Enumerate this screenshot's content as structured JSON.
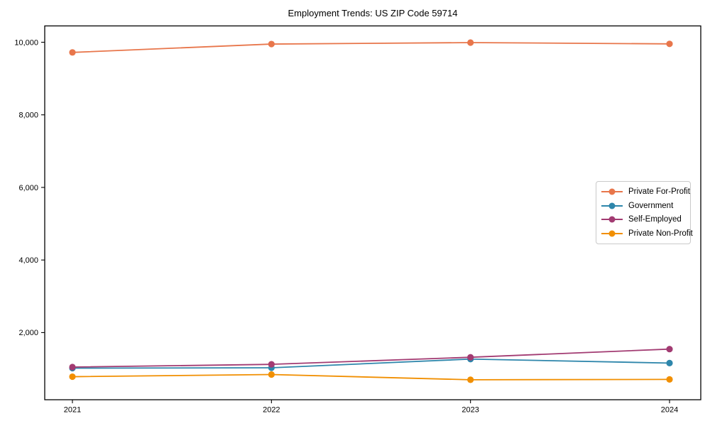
{
  "chart_data": {
    "type": "line",
    "title": "Employment Trends: US ZIP Code 59714",
    "xlabel": "",
    "ylabel": "",
    "grid": false,
    "marker": "circle",
    "legend_position": "center right",
    "x": [
      2021,
      2022,
      2023,
      2024
    ],
    "xtick_labels": [
      "2021",
      "2022",
      "2023",
      "2024"
    ],
    "ytick_values": [
      2000,
      4000,
      6000,
      8000,
      10000
    ],
    "ytick_labels": [
      "2,000",
      "4,000",
      "6,000",
      "8,000",
      "10,000"
    ],
    "ylim": [
      150,
      10450
    ],
    "series": [
      {
        "name": "Private For-Profit",
        "color": "#E8764B",
        "values": [
          9720,
          9950,
          9990,
          9955
        ]
      },
      {
        "name": "Government",
        "color": "#2E86AB",
        "values": [
          1020,
          1030,
          1270,
          1160
        ]
      },
      {
        "name": "Self-Employed",
        "color": "#A23B72",
        "values": [
          1050,
          1125,
          1320,
          1545
        ]
      },
      {
        "name": "Private Non-Profit",
        "color": "#F18F01",
        "values": [
          785,
          845,
          700,
          710
        ]
      }
    ]
  }
}
